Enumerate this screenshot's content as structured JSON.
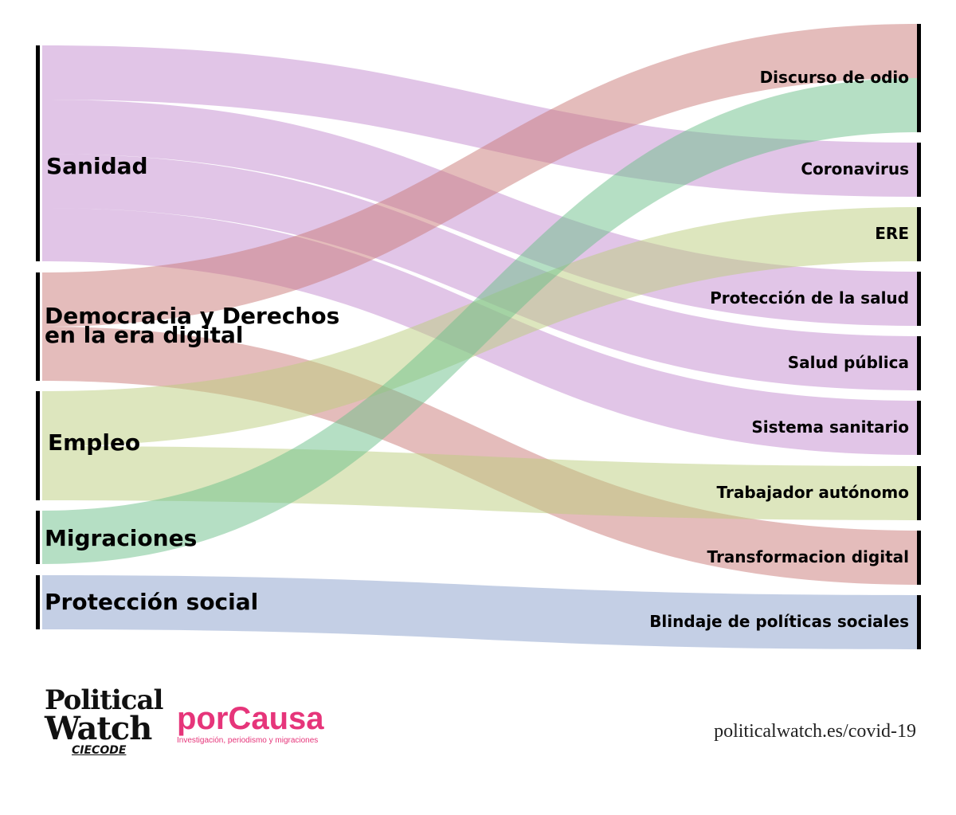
{
  "colors": {
    "purple": "#c48bd0",
    "red": "#c97a78",
    "green": "#6cc08a",
    "olive": "#bccd7e",
    "blue": "#8aa0cc",
    "bar": "#000000"
  },
  "left_nodes": [
    {
      "id": "sanidad",
      "label_lines": [
        "Sanidad"
      ]
    },
    {
      "id": "democracia",
      "label_lines": [
        "Democracia y Derechos",
        "en la era digital"
      ]
    },
    {
      "id": "empleo",
      "label_lines": [
        "Empleo"
      ]
    },
    {
      "id": "migraciones",
      "label_lines": [
        "Migraciones"
      ]
    },
    {
      "id": "proteccion_social",
      "label_lines": [
        "Protección social"
      ]
    }
  ],
  "right_nodes": [
    {
      "id": "discurso",
      "label": "Discurso de odio"
    },
    {
      "id": "coronavirus",
      "label": "Coronavirus"
    },
    {
      "id": "ere",
      "label": "ERE"
    },
    {
      "id": "proteccion_salud",
      "label": "Protección de la salud"
    },
    {
      "id": "salud_publica",
      "label": "Salud pública"
    },
    {
      "id": "sistema_sanitario",
      "label": "Sistema sanitario"
    },
    {
      "id": "trabajador",
      "label": "Trabajador autónomo"
    },
    {
      "id": "transformacion",
      "label": "Transformacion digital"
    },
    {
      "id": "blindaje",
      "label": "Blindaje de políticas sociales"
    }
  ],
  "links": [
    {
      "source": "sanidad",
      "target": "coronavirus",
      "color": "purple"
    },
    {
      "source": "sanidad",
      "target": "proteccion_salud",
      "color": "purple"
    },
    {
      "source": "sanidad",
      "target": "salud_publica",
      "color": "purple"
    },
    {
      "source": "sanidad",
      "target": "sistema_sanitario",
      "color": "purple"
    },
    {
      "source": "democracia",
      "target": "discurso",
      "color": "red"
    },
    {
      "source": "democracia",
      "target": "transformacion",
      "color": "red"
    },
    {
      "source": "empleo",
      "target": "ere",
      "color": "olive"
    },
    {
      "source": "empleo",
      "target": "trabajador",
      "color": "olive"
    },
    {
      "source": "migraciones",
      "target": "discurso",
      "color": "green"
    },
    {
      "source": "proteccion_social",
      "target": "blindaje",
      "color": "blue"
    }
  ],
  "footer": {
    "pw_line1": "Political",
    "pw_line2": "Watch",
    "pw_sub": "CIECODE",
    "pc_name": "porCausa",
    "pc_tag": "Investigación, periodismo y migraciones",
    "url": "politicalwatch.es/covid-19"
  }
}
